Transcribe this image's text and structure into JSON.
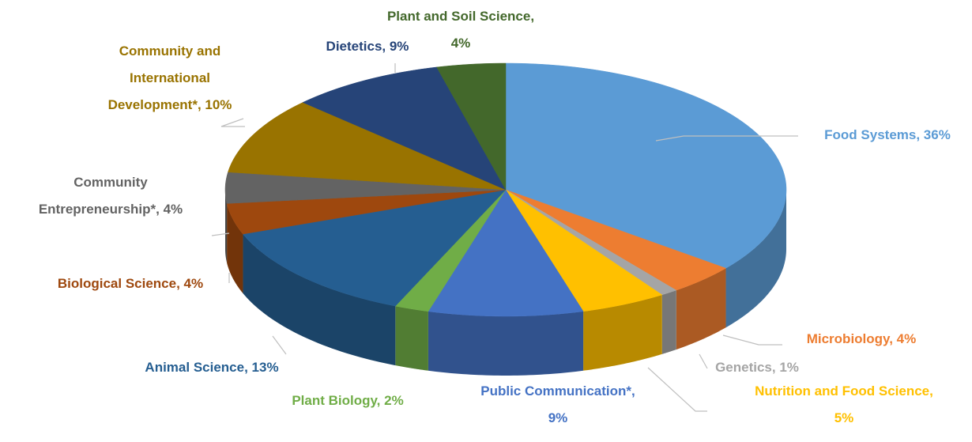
{
  "chart_data": {
    "type": "pie3d",
    "labels": [
      "Food Systems, 36%",
      "Microbiology, 4%",
      "Genetics, 1%",
      "Nutrition and Food Science,\n5%",
      "Public Communication*,\n9%",
      "Plant Biology, 2%",
      "Animal Science, 13%",
      "Biological Science, 4%",
      "Community\nEntrepreneurship*, 4%",
      "Community and\nInternational\nDevelopment*, 10%",
      "Dietetics, 9%",
      "Plant and Soil Science,\n4%"
    ],
    "values": [
      36,
      4,
      1,
      5,
      9,
      2,
      13,
      4,
      4,
      10,
      9,
      4
    ],
    "colors": [
      "#5b9bd5",
      "#ed7d31",
      "#a5a5a5",
      "#ffc000",
      "#4472c4",
      "#70ad47",
      "#255e91",
      "#9e480e",
      "#636363",
      "#997300",
      "#264478",
      "#43682b"
    ]
  }
}
